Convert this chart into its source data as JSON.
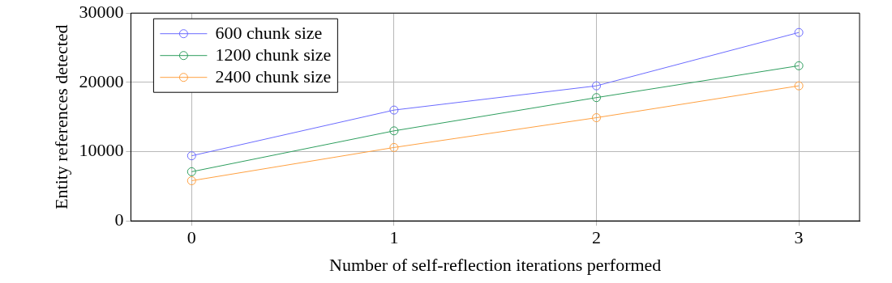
{
  "chart_data": {
    "type": "line",
    "xlabel": "Number of self-reflection iterations performed",
    "ylabel": "Entity references detected",
    "x": [
      0,
      1,
      2,
      3
    ],
    "xlim": [
      -0.3,
      3.3
    ],
    "xticks": [
      0,
      1,
      2,
      3
    ],
    "ylim": [
      0,
      30000
    ],
    "yticks": [
      0,
      10000,
      20000,
      30000
    ],
    "grid": true,
    "legend": "top left",
    "marker": "circle",
    "line_style": "solid",
    "series": [
      {
        "name": "600 chunk size",
        "color": "#6b6bff",
        "values": [
          9400,
          16000,
          19500,
          27200
        ]
      },
      {
        "name": "1200 chunk size",
        "color": "#2e9e5e",
        "values": [
          7100,
          13000,
          17800,
          22400
        ]
      },
      {
        "name": "2400 chunk size",
        "color": "#ffa040",
        "values": [
          5800,
          10600,
          14900,
          19500
        ]
      }
    ]
  }
}
